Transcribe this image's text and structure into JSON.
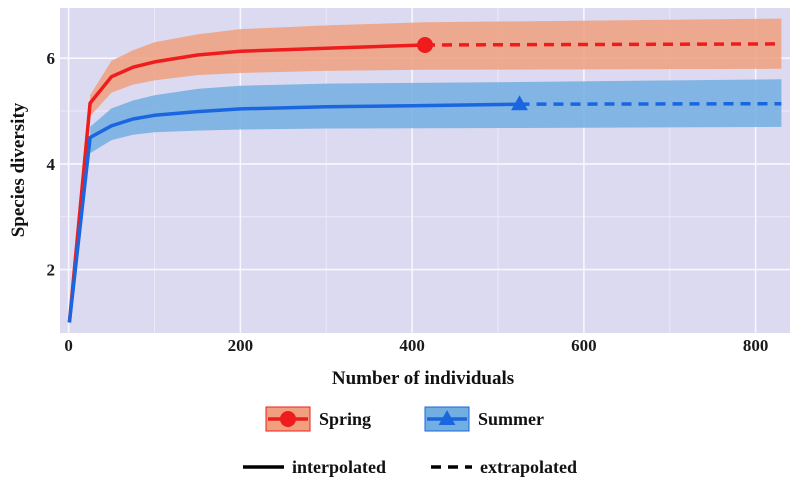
{
  "chart_data": {
    "type": "line",
    "xlabel": "Number of individuals",
    "ylabel": "Species diversity",
    "xlim": [
      -10,
      840
    ],
    "ylim": [
      0.8,
      6.95
    ],
    "x_ticks": [
      0,
      200,
      400,
      600,
      800
    ],
    "y_ticks": [
      2,
      4,
      6
    ],
    "grid": true,
    "legend_position": "bottom",
    "series": [
      {
        "name": "Spring",
        "color": "#ee1c1c",
        "band_color": "#f0a07f",
        "marker": "circle",
        "observed_point": {
          "x": 415,
          "y": 6.25
        },
        "interpolated": [
          {
            "x": 1,
            "y": 1.0
          },
          {
            "x": 25,
            "y": 5.15
          },
          {
            "x": 50,
            "y": 5.65
          },
          {
            "x": 75,
            "y": 5.83
          },
          {
            "x": 100,
            "y": 5.93
          },
          {
            "x": 150,
            "y": 6.06
          },
          {
            "x": 200,
            "y": 6.13
          },
          {
            "x": 300,
            "y": 6.19
          },
          {
            "x": 415,
            "y": 6.25
          }
        ],
        "extrapolated": [
          {
            "x": 415,
            "y": 6.25
          },
          {
            "x": 830,
            "y": 6.27
          }
        ],
        "ci_upper": [
          {
            "x": 25,
            "y": 5.3
          },
          {
            "x": 50,
            "y": 5.95
          },
          {
            "x": 75,
            "y": 6.15
          },
          {
            "x": 100,
            "y": 6.3
          },
          {
            "x": 150,
            "y": 6.45
          },
          {
            "x": 200,
            "y": 6.55
          },
          {
            "x": 300,
            "y": 6.62
          },
          {
            "x": 415,
            "y": 6.68
          },
          {
            "x": 830,
            "y": 6.75
          }
        ],
        "ci_lower": [
          {
            "x": 25,
            "y": 4.9
          },
          {
            "x": 50,
            "y": 5.35
          },
          {
            "x": 75,
            "y": 5.5
          },
          {
            "x": 100,
            "y": 5.58
          },
          {
            "x": 150,
            "y": 5.68
          },
          {
            "x": 200,
            "y": 5.72
          },
          {
            "x": 300,
            "y": 5.76
          },
          {
            "x": 415,
            "y": 5.78
          },
          {
            "x": 830,
            "y": 5.8
          }
        ]
      },
      {
        "name": "Summer",
        "color": "#1a66e0",
        "band_color": "#72aee0",
        "marker": "triangle",
        "observed_point": {
          "x": 525,
          "y": 5.13
        },
        "interpolated": [
          {
            "x": 1,
            "y": 1.0
          },
          {
            "x": 25,
            "y": 4.5
          },
          {
            "x": 50,
            "y": 4.72
          },
          {
            "x": 75,
            "y": 4.85
          },
          {
            "x": 100,
            "y": 4.92
          },
          {
            "x": 150,
            "y": 4.99
          },
          {
            "x": 200,
            "y": 5.04
          },
          {
            "x": 300,
            "y": 5.08
          },
          {
            "x": 400,
            "y": 5.1
          },
          {
            "x": 525,
            "y": 5.13
          }
        ],
        "extrapolated": [
          {
            "x": 525,
            "y": 5.13
          },
          {
            "x": 830,
            "y": 5.14
          }
        ],
        "ci_upper": [
          {
            "x": 25,
            "y": 4.7
          },
          {
            "x": 50,
            "y": 5.05
          },
          {
            "x": 75,
            "y": 5.2
          },
          {
            "x": 100,
            "y": 5.3
          },
          {
            "x": 150,
            "y": 5.42
          },
          {
            "x": 200,
            "y": 5.48
          },
          {
            "x": 300,
            "y": 5.52
          },
          {
            "x": 525,
            "y": 5.55
          },
          {
            "x": 830,
            "y": 5.6
          }
        ],
        "ci_lower": [
          {
            "x": 25,
            "y": 4.2
          },
          {
            "x": 50,
            "y": 4.45
          },
          {
            "x": 75,
            "y": 4.55
          },
          {
            "x": 100,
            "y": 4.6
          },
          {
            "x": 150,
            "y": 4.63
          },
          {
            "x": 200,
            "y": 4.65
          },
          {
            "x": 300,
            "y": 4.67
          },
          {
            "x": 525,
            "y": 4.68
          },
          {
            "x": 830,
            "y": 4.7
          }
        ]
      }
    ],
    "line_types": [
      {
        "style": "solid",
        "label": "interpolated"
      },
      {
        "style": "dashed",
        "label": "extrapolated"
      }
    ]
  }
}
